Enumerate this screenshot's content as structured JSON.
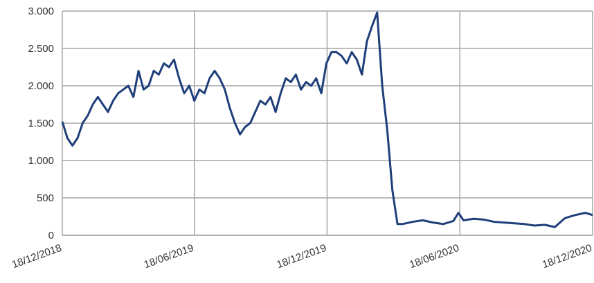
{
  "chart_data": {
    "type": "line",
    "x": [
      "18/12/2018",
      "25/12/2018",
      "01/01/2019",
      "08/01/2019",
      "15/01/2019",
      "22/01/2019",
      "29/01/2019",
      "05/02/2019",
      "12/02/2019",
      "19/02/2019",
      "26/02/2019",
      "05/03/2019",
      "12/03/2019",
      "19/03/2019",
      "26/03/2019",
      "02/04/2019",
      "09/04/2019",
      "16/04/2019",
      "23/04/2019",
      "30/04/2019",
      "07/05/2019",
      "14/05/2019",
      "21/05/2019",
      "28/05/2019",
      "04/06/2019",
      "11/06/2019",
      "18/06/2019",
      "25/06/2019",
      "02/07/2019",
      "09/07/2019",
      "16/07/2019",
      "23/07/2019",
      "30/07/2019",
      "06/08/2019",
      "13/08/2019",
      "20/08/2019",
      "27/08/2019",
      "03/09/2019",
      "10/09/2019",
      "17/09/2019",
      "24/09/2019",
      "01/10/2019",
      "08/10/2019",
      "15/10/2019",
      "22/10/2019",
      "29/10/2019",
      "05/11/2019",
      "12/11/2019",
      "19/11/2019",
      "26/11/2019",
      "03/12/2019",
      "10/12/2019",
      "17/12/2019",
      "24/12/2019",
      "31/12/2019",
      "07/01/2020",
      "14/01/2020",
      "21/01/2020",
      "28/01/2020",
      "04/02/2020",
      "11/02/2020",
      "18/02/2020",
      "25/02/2020",
      "03/03/2020",
      "10/03/2020",
      "17/03/2020",
      "24/03/2020",
      "31/03/2020",
      "14/04/2020",
      "28/04/2020",
      "12/05/2020",
      "26/05/2020",
      "09/06/2020",
      "16/06/2020",
      "23/06/2020",
      "07/07/2020",
      "21/07/2020",
      "04/08/2020",
      "18/08/2020",
      "01/09/2020",
      "15/09/2020",
      "29/09/2020",
      "13/10/2020",
      "27/10/2020",
      "10/11/2020",
      "24/11/2020",
      "08/12/2020",
      "18/12/2020"
    ],
    "series": [
      {
        "color": "#1f3f7a",
        "values": [
          1520,
          1300,
          1200,
          1300,
          1500,
          1600,
          1750,
          1850,
          1750,
          1650,
          1800,
          1900,
          1950,
          2000,
          1850,
          2200,
          1950,
          2000,
          2200,
          2150,
          2300,
          2250,
          2350,
          2100,
          1900,
          2000,
          1800,
          1950,
          1900,
          2100,
          2200,
          2100,
          1950,
          1700,
          1500,
          1350,
          1450,
          1500,
          1650,
          1800,
          1750,
          1850,
          1650,
          1900,
          2100,
          2050,
          2150,
          1950,
          2050,
          2000,
          2100,
          1900,
          2300,
          2450,
          2450,
          2400,
          2300,
          2450,
          2350,
          2150,
          2600,
          2800,
          2980,
          2000,
          1400,
          600,
          150,
          150,
          180,
          200,
          170,
          150,
          190,
          300,
          200,
          220,
          210,
          180,
          170,
          160,
          150,
          130,
          140,
          110,
          230,
          270,
          300,
          270
        ]
      }
    ],
    "xlim": [
      "18/12/2018",
      "18/12/2020"
    ],
    "xticks": [
      "18/12/2018",
      "18/06/2019",
      "18/12/2019",
      "18/06/2020",
      "18/12/2020"
    ],
    "ylim": [
      0,
      3000
    ],
    "yticks": [
      0,
      500,
      {
        "value": 1000,
        "label": "1.000"
      },
      {
        "value": 1500,
        "label": "1.500"
      },
      {
        "value": 2000,
        "label": "2.000"
      },
      {
        "value": 2500,
        "label": "2.500"
      },
      {
        "value": 3000,
        "label": "3.000"
      }
    ],
    "grid": true
  }
}
